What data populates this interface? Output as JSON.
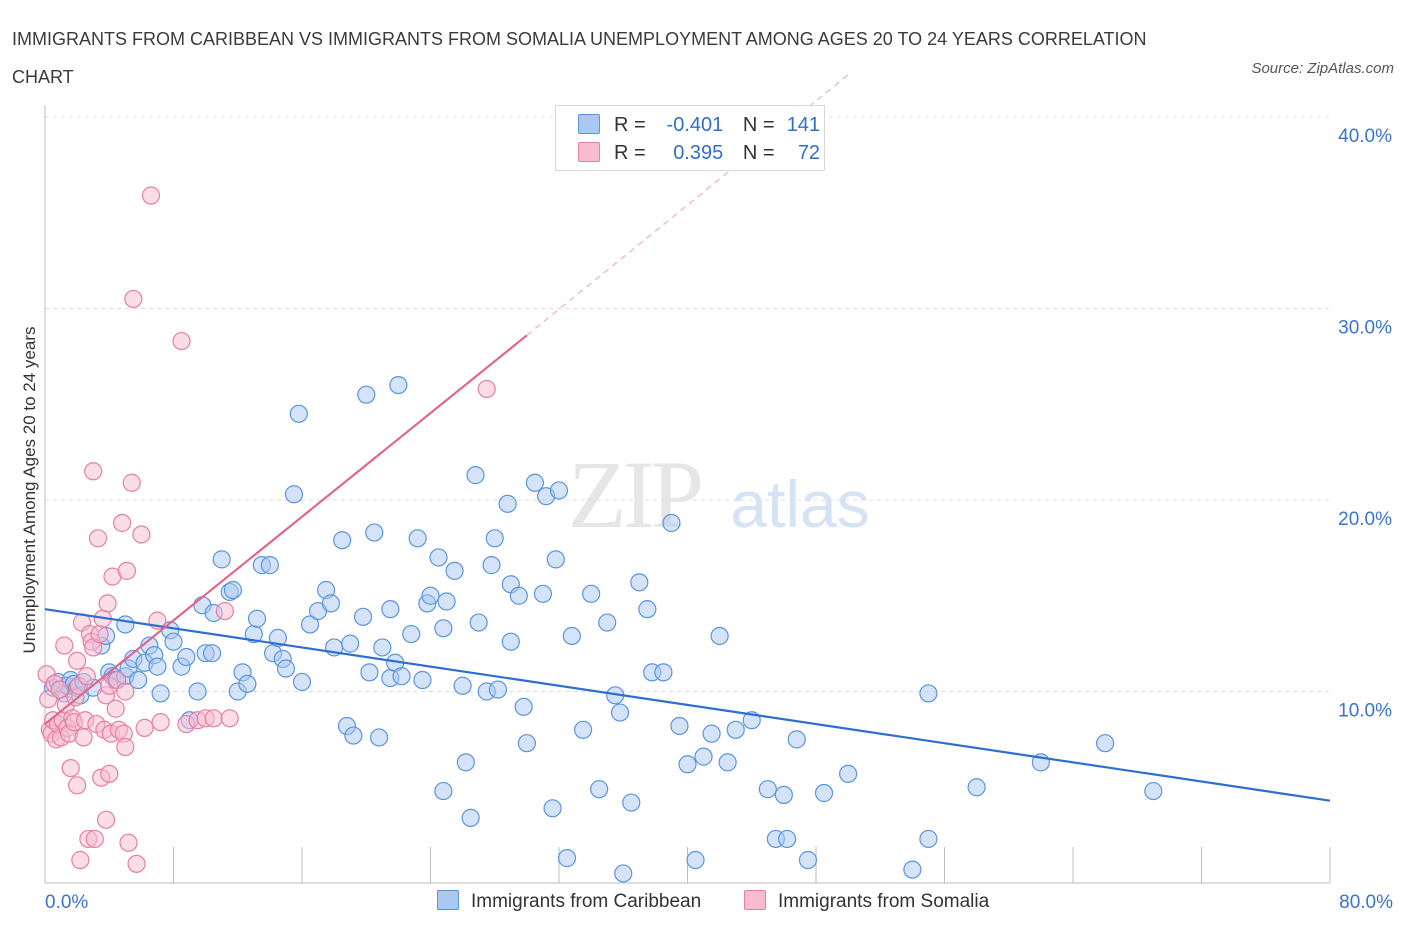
{
  "title": "IMMIGRANTS FROM CARIBBEAN VS IMMIGRANTS FROM SOMALIA UNEMPLOYMENT AMONG AGES 20 TO 24 YEARS CORRELATION CHART",
  "source": "Source: ZipAtlas.com",
  "watermark": {
    "zip": "ZIP",
    "atlas": "atlas"
  },
  "legend": {
    "rows": [
      {
        "r_label": "R =",
        "r_value": "-0.401",
        "n_label": "N =",
        "n_value": "141"
      },
      {
        "r_label": "R =",
        "r_value": "0.395",
        "n_label": "N =",
        "n_value": "72"
      }
    ]
  },
  "colors": {
    "caribbean_fill": "#aac8f2",
    "caribbean_stroke": "#5b95dc",
    "caribbean_line": "#2d6fd0",
    "somalia_fill": "#f7bcd0",
    "somalia_stroke": "#e77fa2",
    "somalia_line": "#e0668f",
    "axis_label": "#3a74cc",
    "grid": "#dcdcdc"
  },
  "chart_data": {
    "type": "scatter",
    "title": "IMMIGRANTS FROM CARIBBEAN VS IMMIGRANTS FROM SOMALIA UNEMPLOYMENT AMONG AGES 20 TO 24 YEARS CORRELATION CHART",
    "xlabel": "",
    "ylabel": "Unemployment Among Ages 20 to 24 years",
    "xlim": [
      0,
      80
    ],
    "ylim": [
      0,
      40
    ],
    "x_tick_labels": [
      "0.0%",
      "80.0%"
    ],
    "y_tick_labels": [
      "10.0%",
      "20.0%",
      "30.0%",
      "40.0%"
    ],
    "y_ticks": [
      10,
      20,
      30,
      40
    ],
    "x_minor_ticks": [
      0,
      8,
      16,
      24,
      32,
      40,
      48,
      56,
      64,
      72,
      80
    ],
    "grid": true,
    "legend_position": "top-center",
    "series": [
      {
        "name": "Immigrants from Caribbean",
        "trend": {
          "x1": 0,
          "y1": 14.3,
          "x2": 80,
          "y2": 4.3
        },
        "points": [
          [
            0.5,
            10.2
          ],
          [
            0.8,
            10.5
          ],
          [
            1,
            10.1
          ],
          [
            1.2,
            9.9
          ],
          [
            1.4,
            10.3
          ],
          [
            1.6,
            10.6
          ],
          [
            1.8,
            10.4
          ],
          [
            2,
            10.2
          ],
          [
            2.2,
            9.8
          ],
          [
            2.4,
            10.5
          ],
          [
            3,
            10.2
          ],
          [
            3.5,
            12.4
          ],
          [
            3.8,
            12.9
          ],
          [
            4,
            11
          ],
          [
            4.2,
            10.8
          ],
          [
            4.4,
            10.6
          ],
          [
            5,
            10.8
          ],
          [
            5,
            13.5
          ],
          [
            5.2,
            11.2
          ],
          [
            5.5,
            11.7
          ],
          [
            5.8,
            10.6
          ],
          [
            6.2,
            11.5
          ],
          [
            6.5,
            12.4
          ],
          [
            6.8,
            11.9
          ],
          [
            7,
            11.3
          ],
          [
            7.2,
            9.9
          ],
          [
            7.8,
            13.2
          ],
          [
            8,
            12.6
          ],
          [
            8.5,
            11.3
          ],
          [
            8.8,
            11.8
          ],
          [
            9,
            8.5
          ],
          [
            9.5,
            10
          ],
          [
            9.8,
            14.5
          ],
          [
            10,
            12
          ],
          [
            10.4,
            12
          ],
          [
            10.5,
            14.1
          ],
          [
            11,
            16.9
          ],
          [
            11.5,
            15.2
          ],
          [
            11.7,
            15.3
          ],
          [
            12,
            10
          ],
          [
            12.3,
            11
          ],
          [
            12.6,
            10.4
          ],
          [
            13,
            13
          ],
          [
            13.2,
            13.8
          ],
          [
            13.5,
            16.6
          ],
          [
            14,
            16.6
          ],
          [
            14.2,
            12
          ],
          [
            14.5,
            12.8
          ],
          [
            14.8,
            11.7
          ],
          [
            15,
            11.2
          ],
          [
            15.5,
            20.3
          ],
          [
            15.8,
            24.5
          ],
          [
            16,
            10.5
          ],
          [
            16.5,
            13.5
          ],
          [
            17,
            14.2
          ],
          [
            17.5,
            15.3
          ],
          [
            17.8,
            14.6
          ],
          [
            18,
            12.3
          ],
          [
            18.5,
            17.9
          ],
          [
            18.8,
            8.2
          ],
          [
            19,
            12.5
          ],
          [
            19.2,
            7.7
          ],
          [
            19.8,
            13.9
          ],
          [
            20,
            25.5
          ],
          [
            20.2,
            11
          ],
          [
            20.5,
            18.3
          ],
          [
            20.8,
            7.6
          ],
          [
            21,
            12.3
          ],
          [
            21.5,
            10.7
          ],
          [
            21.5,
            14.3
          ],
          [
            21.8,
            11.5
          ],
          [
            22.2,
            10.8
          ],
          [
            22,
            26
          ],
          [
            22.8,
            13
          ],
          [
            23.2,
            18
          ],
          [
            23.5,
            10.6
          ],
          [
            23.8,
            14.6
          ],
          [
            24,
            15
          ],
          [
            24.5,
            17
          ],
          [
            24.8,
            13.3
          ],
          [
            24.8,
            4.8
          ],
          [
            25,
            14.7
          ],
          [
            25.5,
            16.3
          ],
          [
            26,
            10.3
          ],
          [
            26.2,
            6.3
          ],
          [
            26.5,
            3.4
          ],
          [
            26.8,
            21.3
          ],
          [
            27,
            13.6
          ],
          [
            27.5,
            10
          ],
          [
            27.8,
            16.6
          ],
          [
            28,
            18
          ],
          [
            28.2,
            10.1
          ],
          [
            28.8,
            19.8
          ],
          [
            29,
            15.6
          ],
          [
            29,
            12.6
          ],
          [
            29.5,
            15
          ],
          [
            29.8,
            9.2
          ],
          [
            30,
            7.3
          ],
          [
            30.5,
            20.9
          ],
          [
            31,
            15.1
          ],
          [
            31.2,
            20.2
          ],
          [
            31.6,
            3.9
          ],
          [
            31.8,
            16.9
          ],
          [
            32,
            20.5
          ],
          [
            32.5,
            1.3
          ],
          [
            32.8,
            12.9
          ],
          [
            33.5,
            8
          ],
          [
            34,
            15.1
          ],
          [
            34.5,
            4.9
          ],
          [
            35,
            13.6
          ],
          [
            35.5,
            9.8
          ],
          [
            35.8,
            8.9
          ],
          [
            36,
            0.5
          ],
          [
            36.5,
            4.2
          ],
          [
            37,
            15.7
          ],
          [
            37.5,
            14.3
          ],
          [
            37.8,
            11
          ],
          [
            38.5,
            11
          ],
          [
            39,
            18.8
          ],
          [
            39.5,
            8.2
          ],
          [
            40,
            6.2
          ],
          [
            40.5,
            1.2
          ],
          [
            41,
            6.6
          ],
          [
            41.5,
            7.8
          ],
          [
            42,
            12.9
          ],
          [
            42.5,
            6.3
          ],
          [
            43,
            8
          ],
          [
            44,
            8.5
          ],
          [
            45,
            4.9
          ],
          [
            45.5,
            2.3
          ],
          [
            46,
            4.6
          ],
          [
            46.2,
            2.3
          ],
          [
            46.8,
            7.5
          ],
          [
            47.5,
            1.2
          ],
          [
            48.5,
            4.7
          ],
          [
            50,
            5.7
          ],
          [
            54,
            0.7
          ],
          [
            55,
            2.3
          ],
          [
            55,
            9.9
          ],
          [
            58,
            5
          ],
          [
            62,
            6.3
          ],
          [
            66,
            7.3
          ],
          [
            69,
            4.8
          ]
        ]
      },
      {
        "name": "Immigrants from Somalia",
        "trend": {
          "x1": 0,
          "y1": 8.3,
          "x2": 30,
          "y2": 28.6,
          "dash_x2": 50,
          "dash_y2": 42.2
        },
        "points": [
          [
            0.1,
            10.9
          ],
          [
            0.2,
            9.6
          ],
          [
            0.3,
            8
          ],
          [
            0.4,
            7.8
          ],
          [
            0.5,
            8.5
          ],
          [
            0.6,
            10.4
          ],
          [
            0.7,
            7.5
          ],
          [
            0.8,
            8.3
          ],
          [
            0.9,
            10.1
          ],
          [
            1,
            7.6
          ],
          [
            1.1,
            8.5
          ],
          [
            1.2,
            12.4
          ],
          [
            1.3,
            9.3
          ],
          [
            1.4,
            8.1
          ],
          [
            1.5,
            7.8
          ],
          [
            1.6,
            6
          ],
          [
            1.7,
            8.6
          ],
          [
            1.8,
            8.4
          ],
          [
            1.9,
            9.7
          ],
          [
            2,
            11.6
          ],
          [
            2,
            5.1
          ],
          [
            2.1,
            10.3
          ],
          [
            2.2,
            1.2
          ],
          [
            2.3,
            13.6
          ],
          [
            2.4,
            7.6
          ],
          [
            2.5,
            8.5
          ],
          [
            2.6,
            10.8
          ],
          [
            2.7,
            2.3
          ],
          [
            2.8,
            13
          ],
          [
            2.9,
            12.6
          ],
          [
            3,
            12.3
          ],
          [
            3,
            21.5
          ],
          [
            3.1,
            2.3
          ],
          [
            3.2,
            8.3
          ],
          [
            3.3,
            18
          ],
          [
            3.4,
            13
          ],
          [
            3.5,
            5.5
          ],
          [
            3.6,
            13.8
          ],
          [
            3.7,
            8
          ],
          [
            3.8,
            9.8
          ],
          [
            3.8,
            3.3
          ],
          [
            3.9,
            14.6
          ],
          [
            4,
            5.7
          ],
          [
            4,
            10.3
          ],
          [
            4.1,
            7.8
          ],
          [
            4.2,
            16
          ],
          [
            4.4,
            9.1
          ],
          [
            4.5,
            10.6
          ],
          [
            4.6,
            8
          ],
          [
            4.8,
            18.8
          ],
          [
            4.9,
            7.8
          ],
          [
            5,
            10
          ],
          [
            5,
            7.1
          ],
          [
            5.1,
            16.3
          ],
          [
            5.2,
            2.1
          ],
          [
            5.4,
            20.9
          ],
          [
            5.5,
            30.5
          ],
          [
            5.7,
            1
          ],
          [
            6,
            18.2
          ],
          [
            6.2,
            8.1
          ],
          [
            6.6,
            35.9
          ],
          [
            7,
            13.7
          ],
          [
            7.2,
            8.4
          ],
          [
            8.5,
            28.3
          ],
          [
            8.8,
            8.3
          ],
          [
            9.5,
            8.5
          ],
          [
            10,
            8.6
          ],
          [
            10.5,
            8.6
          ],
          [
            11.2,
            14.2
          ],
          [
            11.5,
            8.6
          ],
          [
            27.5,
            25.8
          ]
        ]
      }
    ]
  },
  "bottom_legend": {
    "caribbean": "Immigrants from Caribbean",
    "somalia": "Immigrants from Somalia"
  }
}
